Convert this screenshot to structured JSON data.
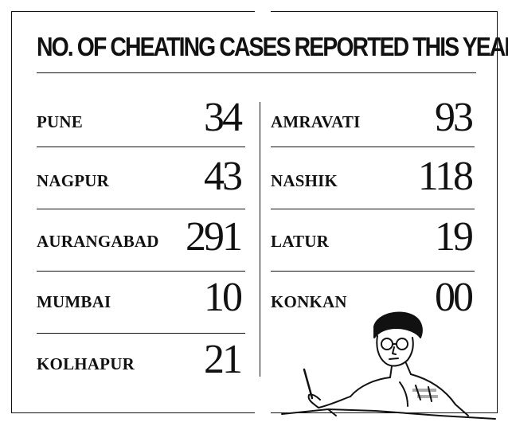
{
  "title": "NO. OF CHEATING CASES REPORTED THIS YEAR",
  "left_column": [
    {
      "city": "PUNE",
      "cases": "34"
    },
    {
      "city": "NAGPUR",
      "cases": "43"
    },
    {
      "city": "AURANGABAD",
      "cases": "291"
    },
    {
      "city": "MUMBAI",
      "cases": "10"
    },
    {
      "city": "KOLHAPUR",
      "cases": "21"
    }
  ],
  "right_column": [
    {
      "city": "AMRAVATI",
      "cases": "93"
    },
    {
      "city": "NASHIK",
      "cases": "118"
    },
    {
      "city": "LATUR",
      "cases": "19"
    },
    {
      "city": "KONKAN",
      "cases": "00"
    }
  ],
  "illustration": "student-writing-exam"
}
